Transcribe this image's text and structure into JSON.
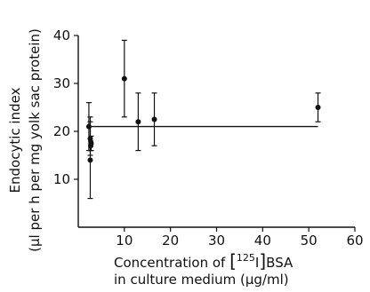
{
  "chart_data": {
    "type": "scatter",
    "title": "",
    "ylabel_line1": "Endocytic index",
    "ylabel_line2": "(μl per h per mg yolk sac protein)",
    "xlabel_line1_prefix": "Concentration of ",
    "xlabel_isotope": "125",
    "xlabel_line1_suffix": "BSA",
    "xlabel_line2": "in culture medium (μg/ml)",
    "xlim": [
      0,
      60
    ],
    "ylim": [
      0,
      40
    ],
    "x_ticks": [
      10,
      20,
      30,
      40,
      50,
      60
    ],
    "y_ticks": [
      10,
      20,
      30,
      40
    ],
    "grid": false,
    "legend": "none",
    "reference_line": {
      "y": 21,
      "x_from": 2.5,
      "x_to": 52
    },
    "points": [
      {
        "x": 2.3,
        "y": 21,
        "err_low": 16,
        "err_high": 26
      },
      {
        "x": 2.6,
        "y": 18.5,
        "err_low": 15,
        "err_high": 22
      },
      {
        "x": 2.8,
        "y": 17.5,
        "err_low": 16,
        "err_high": 19
      },
      {
        "x": 2.7,
        "y": 17,
        "err_low": 16,
        "err_high": 18
      },
      {
        "x": 2.6,
        "y": 14,
        "err_low": 6,
        "err_high": 23
      },
      {
        "x": 10,
        "y": 31,
        "err_low": 23,
        "err_high": 39
      },
      {
        "x": 13,
        "y": 22,
        "err_low": 16,
        "err_high": 28
      },
      {
        "x": 16.5,
        "y": 22.5,
        "err_low": 17,
        "err_high": 28
      },
      {
        "x": 52,
        "y": 25,
        "err_low": 22,
        "err_high": 28
      }
    ]
  }
}
